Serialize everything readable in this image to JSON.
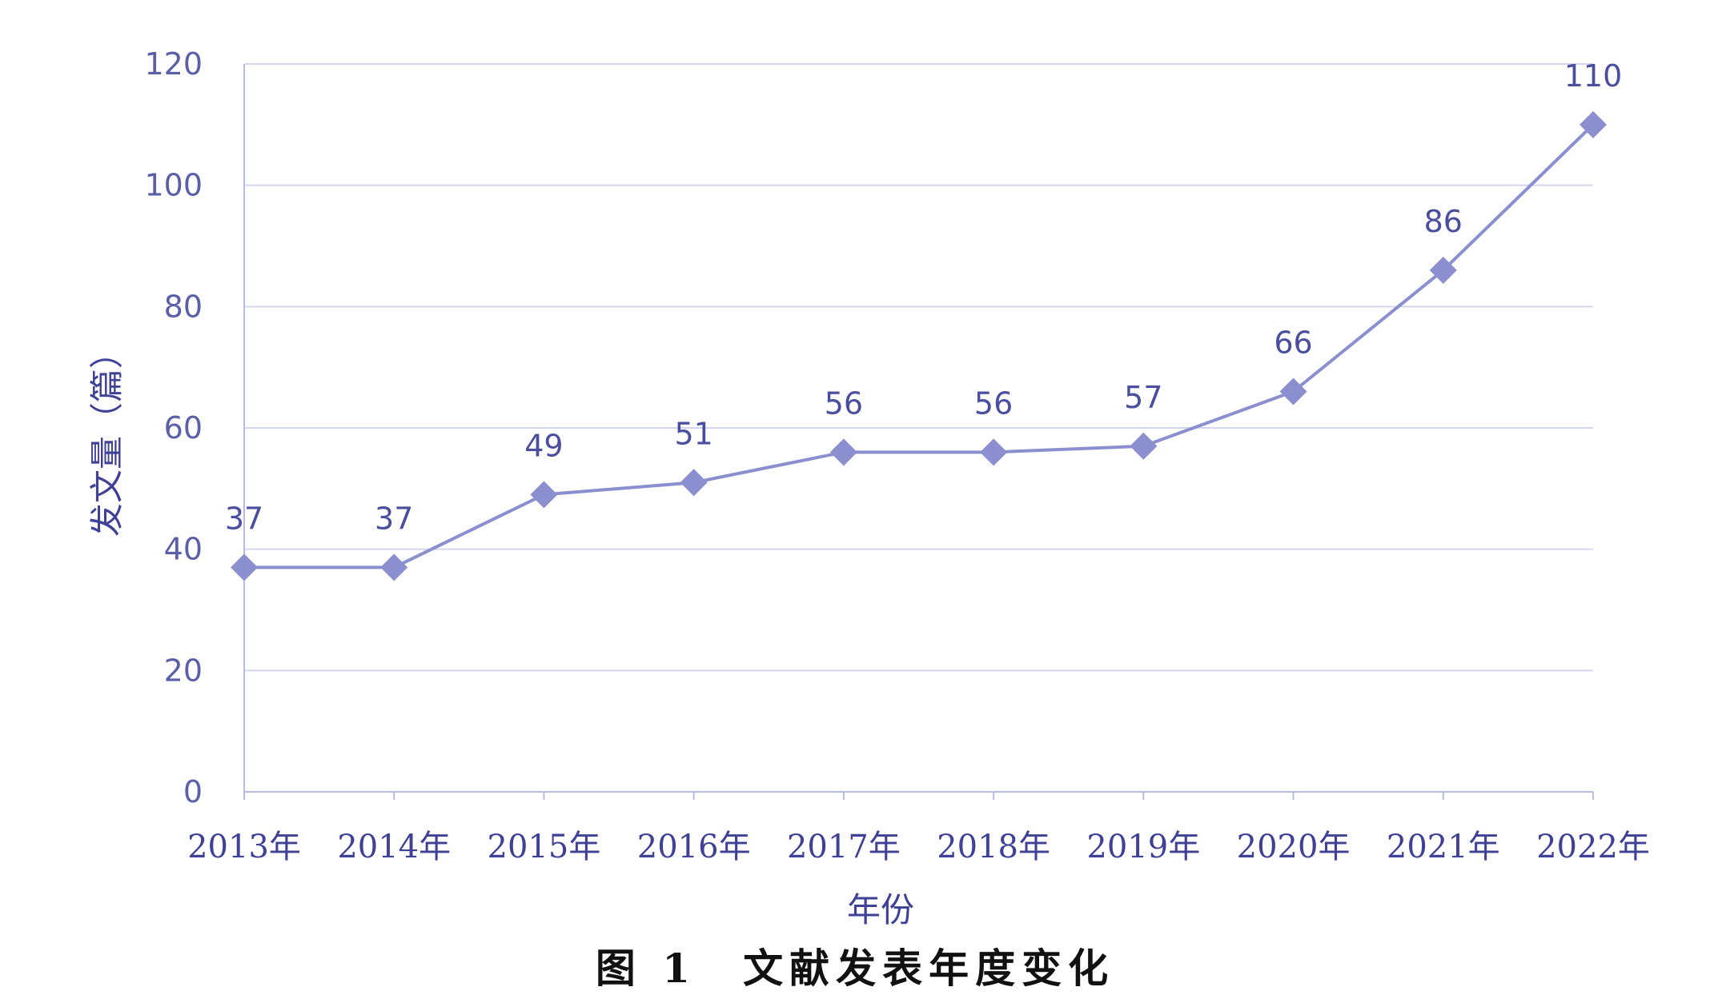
{
  "chart_data": {
    "type": "line",
    "categories": [
      "2013年",
      "2014年",
      "2015年",
      "2016年",
      "2017年",
      "2018年",
      "2019年",
      "2020年",
      "2021年",
      "2022年"
    ],
    "series": [
      {
        "values": [
          37,
          37,
          49,
          51,
          56,
          56,
          57,
          66,
          86,
          110
        ]
      }
    ],
    "xlabel": "年份",
    "ylabel": "发文量（篇）",
    "ylim": [
      0,
      120
    ],
    "yticks": [
      0,
      20,
      40,
      60,
      80,
      100,
      120
    ],
    "grid": "horizontal",
    "marker": "diamond",
    "data_labels": true,
    "colors": {
      "line": "#8b8fcf",
      "marker": "#8b8fcf",
      "grid": "#d4d6ee",
      "axis": "#b9bce0"
    }
  },
  "caption": "图 1　文献发表年度变化"
}
